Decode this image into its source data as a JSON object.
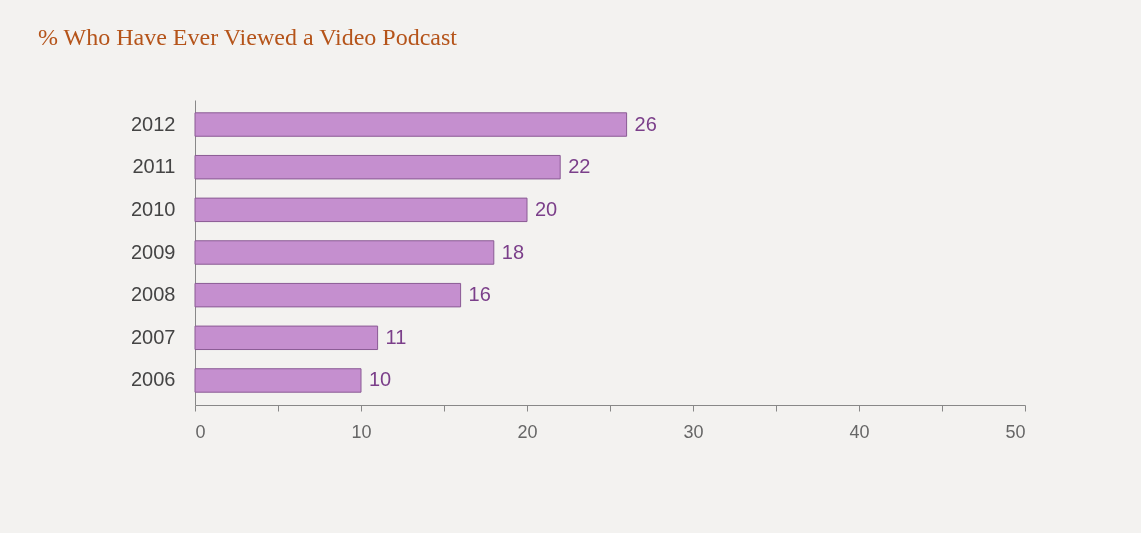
{
  "chart_data": {
    "type": "bar",
    "orientation": "horizontal",
    "title": "% Who Have Ever Viewed a Video Podcast",
    "categories": [
      "2012",
      "2011",
      "2010",
      "2009",
      "2008",
      "2007",
      "2006"
    ],
    "values": [
      26,
      22,
      20,
      18,
      16,
      11,
      10
    ],
    "color": "#c58fcf",
    "data_labels": true,
    "grid": false,
    "xlim": [
      0,
      50
    ],
    "xticks": [
      0,
      {
        "value": 5,
        "label": null
      },
      10,
      {
        "value": 15,
        "label": null
      },
      20,
      {
        "value": 25,
        "label": null
      },
      30,
      {
        "value": 35,
        "label": null
      },
      40,
      {
        "value": 45,
        "label": null
      },
      50
    ]
  }
}
